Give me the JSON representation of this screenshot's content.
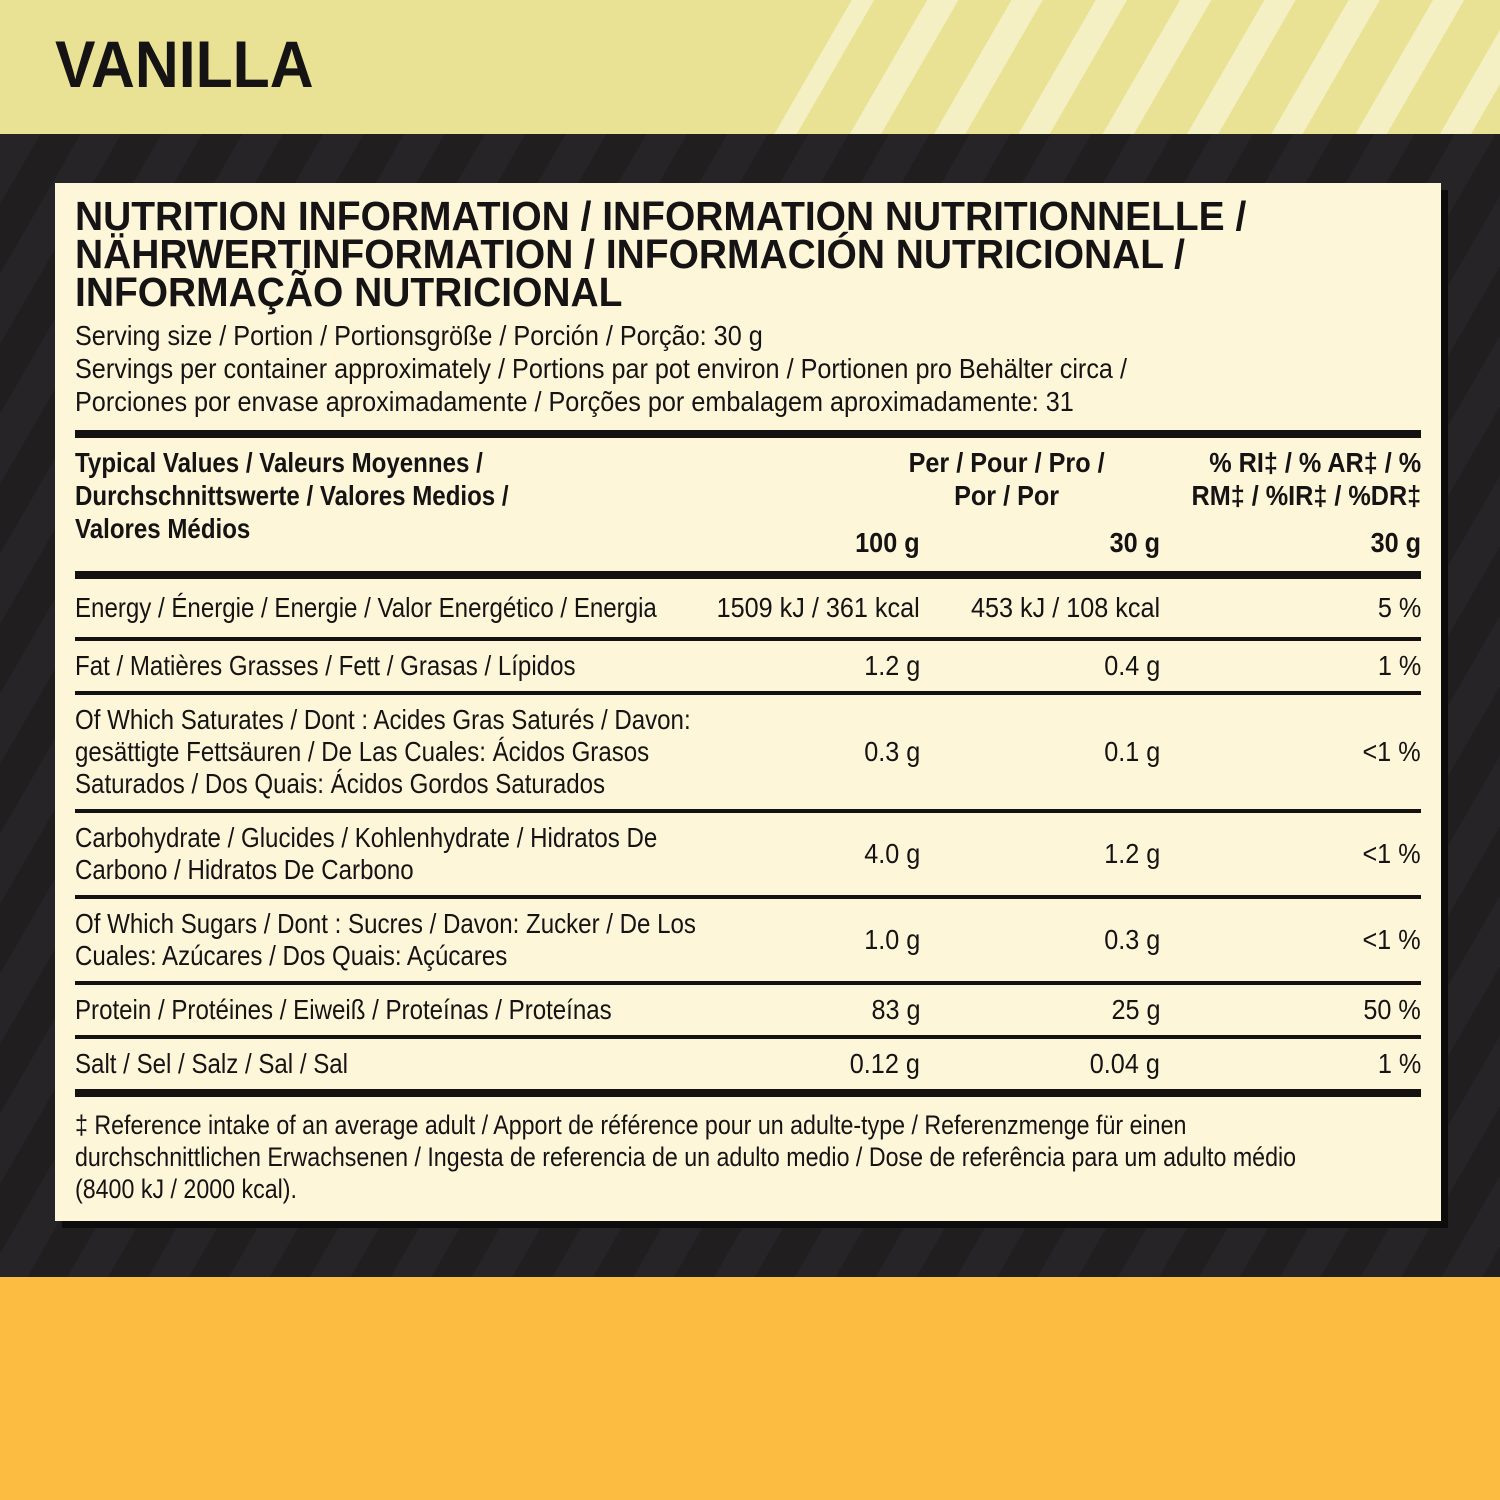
{
  "flavor_banner": {
    "label": "VANILLA"
  },
  "panel": {
    "title_lines": [
      "NUTRITION INFORMATION / INFORMATION NUTRITIONNELLE /",
      "NÄHRWERTINFORMATION / INFORMACIÓN NUTRICIONAL /",
      "INFORMAÇÃO NUTRICIONAL"
    ],
    "serving_lines": [
      "Serving size / Portion / Portionsgröße / Porción / Porção: 30 g",
      "Servings per container approximately / Portions par pot environ / Portionen pro Behälter circa /",
      "Porciones por envase aproximadamente / Porções por embalagem aproximadamente: 31"
    ],
    "table": {
      "header": {
        "col1_lines": [
          "Typical Values / Valeurs Moyennes /",
          "Durchschnittswerte / Valores Medios /",
          "Valores Médios"
        ],
        "per_lines": [
          "Per / Pour / Pro /",
          "Por / Por"
        ],
        "ri_lines": [
          "% RI‡ / % AR‡ / %",
          "RM‡ / %IR‡ / %DR‡"
        ],
        "unit_100": "100 g",
        "unit_30": "30 g",
        "unit_ri_30": "30 g"
      },
      "rows": [
        {
          "label_lines": [
            "Energy / Énergie / Energie / Valor Energético / Energia"
          ],
          "per100": "1509 kJ / 361 kcal",
          "per30": "453 kJ / 108 kcal",
          "ri": "5 %"
        },
        {
          "label_lines": [
            "Fat / Matières Grasses / Fett / Grasas / Lípidos"
          ],
          "per100": "1.2 g",
          "per30": "0.4 g",
          "ri": "1 %"
        },
        {
          "label_lines": [
            "Of Which Saturates / Dont : Acides Gras Saturés / Davon:",
            "gesättigte Fettsäuren / De Las Cuales: Ácidos Grasos",
            "Saturados / Dos Quais: Ácidos Gordos Saturados"
          ],
          "per100": "0.3 g",
          "per30": "0.1 g",
          "ri": "<1 %"
        },
        {
          "label_lines": [
            "Carbohydrate / Glucides / Kohlenhydrate / Hidratos De",
            "Carbono / Hidratos De Carbono"
          ],
          "per100": "4.0 g",
          "per30": "1.2 g",
          "ri": "<1 %"
        },
        {
          "label_lines": [
            "Of Which Sugars / Dont : Sucres / Davon: Zucker / De Los",
            "Cuales: Azúcares / Dos Quais: Açúcares"
          ],
          "per100": "1.0 g",
          "per30": "0.3 g",
          "ri": "<1 %"
        },
        {
          "label_lines": [
            "Protein / Protéines / Eiweiß / Proteínas / Proteínas"
          ],
          "per100": "83 g",
          "per30": "25 g",
          "ri": "50 %"
        },
        {
          "label_lines": [
            "Salt / Sel / Salz / Sal / Sal"
          ],
          "per100": "0.12 g",
          "per30": "0.04 g",
          "ri": "1 %"
        }
      ]
    },
    "footnote_lines": [
      "‡ Reference intake of an average adult / Apport de référence pour un adulte-type / Referenzmenge für einen",
      "durchschnittlichen Erwachsenen / Ingesta de referencia de un adulto medio / Dose de referência para um adulto médio",
      "(8400 kJ / 2000 kcal)."
    ]
  },
  "colors": {
    "banner_yellow": "#e9e295",
    "banner_stripe_light": "#f5f0c4",
    "background_dark": "#211e20",
    "background_stripe": "#272427",
    "panel_cream": "#fdf6d8",
    "rule_black": "#131112",
    "bottom_orange": "#fcbb41",
    "text_black": "#151314"
  }
}
